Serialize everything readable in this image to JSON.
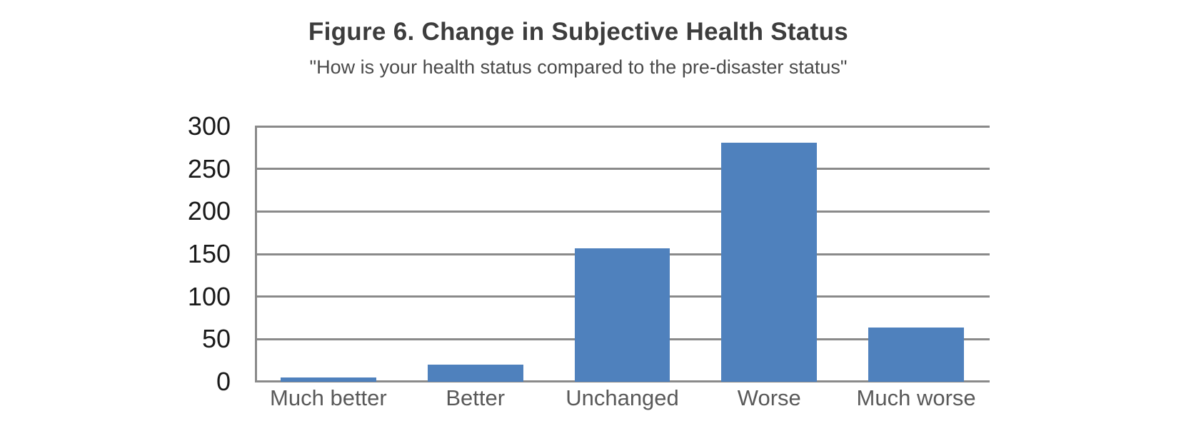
{
  "figure": {
    "title": "Figure 6. Change in Subjective Health Status",
    "subtitle": "\"How is your health status compared to the pre-disaster status\""
  },
  "chart_data": {
    "type": "bar",
    "title": "Figure 6. Change in Subjective Health Status",
    "subtitle": "\"How is your health status compared to the pre-disaster status\"",
    "categories": [
      "Much better",
      "Better",
      "Unchanged",
      "Worse",
      "Much worse"
    ],
    "values": [
      5,
      20,
      157,
      281,
      64
    ],
    "xlabel": "",
    "ylabel": "",
    "ylim": [
      0,
      300
    ],
    "yticks": [
      0,
      50,
      100,
      150,
      200,
      250,
      300
    ],
    "grid": "horizontal",
    "legend": "none",
    "colors": {
      "bar": "#4f81bd",
      "grid": "#8a8a8a",
      "title_text": "#3d3d3d",
      "subtitle_text": "#4a4a4a",
      "ytick_text": "#1a1a1a",
      "xtick_text": "#595959",
      "background": "#ffffff"
    }
  }
}
